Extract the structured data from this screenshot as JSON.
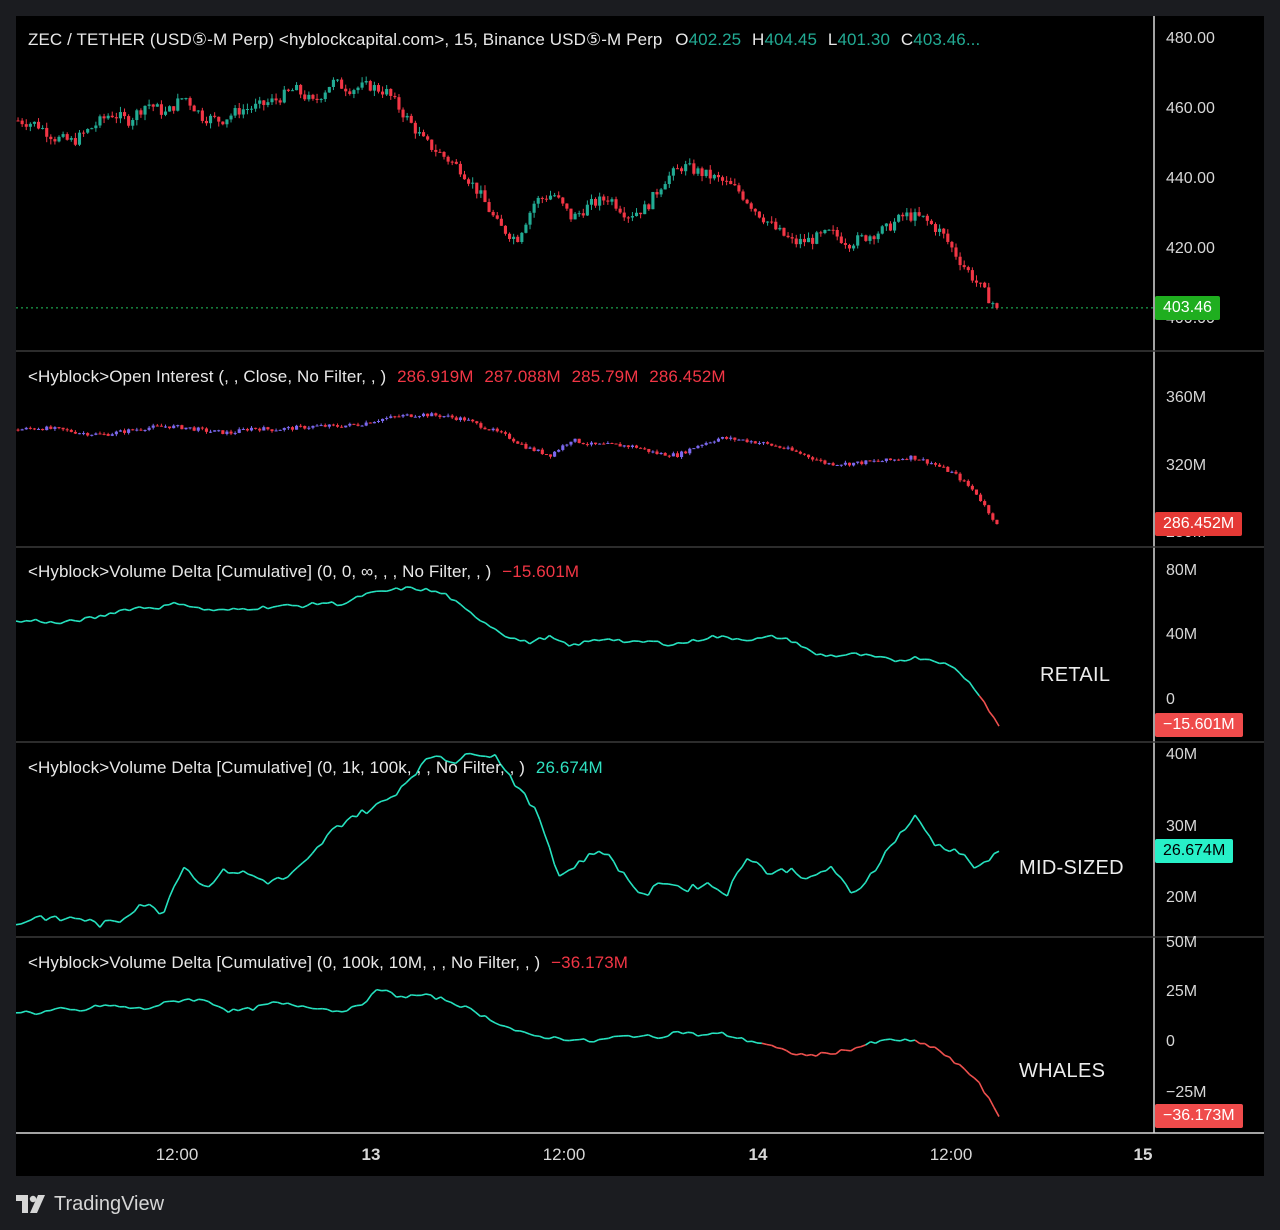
{
  "brand": {
    "name": "TradingView",
    "icon": "tradingview-logo-icon"
  },
  "colors": {
    "up": "#22ab94",
    "down": "#f23645",
    "line_up": "#26e3c0",
    "line_down": "#f0514f",
    "oi_up": "#7b68ee"
  },
  "panes": [
    {
      "id": "price",
      "title_main": "ZEC / TETHER (USD⑤-M Perp) <hyblockcapital.com>, 15, Binance USD⑤-M Perp",
      "ohlc": {
        "o_label": "O",
        "o": "402.25",
        "h_label": "H",
        "h": "404.45",
        "l_label": "L",
        "l": "401.30",
        "c_label": "C",
        "c": "403.46..."
      },
      "axis_ticks": [
        "480.00",
        "460.00",
        "440.00",
        "420.00",
        "400.00"
      ],
      "last_value": "403.46"
    },
    {
      "id": "open-interest",
      "title_main": "<Hyblock>Open Interest (, , Close, No Filter, , )",
      "values": [
        "286.919M",
        "287.088M",
        "285.79M",
        "286.452M"
      ],
      "axis_ticks": [
        "360M",
        "320M",
        "280M"
      ],
      "last_value": "286.452M"
    },
    {
      "id": "retail",
      "title_main": "<Hyblock>Volume Delta [Cumulative] (0, 0, ∞, , , No Filter, , )",
      "value": "−15.601M",
      "axis_ticks": [
        "80M",
        "40M",
        "0"
      ],
      "last_value": "−15.601M",
      "tag": "RETAIL"
    },
    {
      "id": "mid-sized",
      "title_main": "<Hyblock>Volume Delta [Cumulative] (0, 1k, 100k, , , No Filter, , )",
      "value": "26.674M",
      "axis_ticks": [
        "40M",
        "30M",
        "20M"
      ],
      "last_value": "26.674M",
      "tag": "MID-SIZED"
    },
    {
      "id": "whales",
      "title_main": "<Hyblock>Volume Delta [Cumulative] (0, 100k, 10M, , , No Filter, , )",
      "value": "−36.173M",
      "axis_ticks": [
        "50M",
        "25M",
        "0",
        "−25M"
      ],
      "last_value": "−36.173M",
      "tag": "WHALES"
    }
  ],
  "time_axis": [
    "12:00",
    "13",
    "12:00",
    "14",
    "12:00",
    "15"
  ],
  "chart_data": [
    {
      "type": "candlestick",
      "title": "ZEC / TETHER (USD⑤-M Perp), 15, Binance USD⑤-M Perp",
      "ylim": [
        395,
        485
      ],
      "keypoints_y": [
        457,
        456,
        452,
        451,
        455,
        459,
        457,
        462,
        459,
        464,
        458,
        457,
        460,
        461,
        463,
        466,
        462,
        468,
        466,
        467,
        465,
        458,
        451,
        447,
        443,
        436,
        427,
        423,
        434,
        436,
        429,
        433,
        435,
        430,
        432,
        440,
        444,
        442,
        440,
        437,
        431,
        426,
        422,
        423,
        425,
        422,
        424,
        426,
        430,
        429,
        425,
        417,
        410,
        403.46
      ],
      "last": 403.46
    },
    {
      "type": "candlestick",
      "title": "<Hyblock>Open Interest",
      "ylim": [
        278,
        372
      ],
      "keypoints_y": [
        342,
        343,
        342,
        340,
        339,
        341,
        343,
        344,
        343,
        341,
        340,
        343,
        342,
        343,
        344,
        344,
        345,
        348,
        350,
        351,
        350,
        348,
        343,
        338,
        331,
        327,
        336,
        333,
        333,
        332,
        328,
        327,
        333,
        337,
        336,
        334,
        331,
        327,
        322,
        322,
        323,
        324,
        326,
        322,
        316,
        305,
        286.452
      ],
      "last": 286.452
    },
    {
      "type": "line",
      "title": "RETAIL",
      "ylim": [
        -25,
        90
      ],
      "keypoints_y": [
        49,
        50,
        48,
        50,
        52,
        56,
        58,
        58,
        61,
        57,
        56,
        57,
        58,
        59,
        59,
        61,
        60,
        66,
        68,
        70,
        69,
        66,
        56,
        48,
        40,
        36,
        40,
        34,
        37,
        39,
        36,
        37,
        35,
        37,
        40,
        39,
        38,
        40,
        37,
        29,
        28,
        29,
        27,
        25,
        27,
        25,
        19,
        5,
        -15.601
      ],
      "last": -15.601
    },
    {
      "type": "line",
      "title": "MID-SIZED",
      "ylim": [
        15.5,
        44
      ],
      "keypoints_y": [
        16.3,
        17.6,
        17.1,
        17.4,
        16.4,
        17.0,
        19.5,
        18.0,
        24.8,
        21.6,
        24.0,
        23.6,
        22.4,
        23.0,
        25.5,
        29.2,
        31.5,
        32.6,
        34.4,
        37.5,
        40.3,
        39.2,
        40.6,
        39.9,
        35.6,
        31.6,
        23.1,
        25.3,
        27.0,
        23.7,
        20.3,
        22.6,
        21.3,
        22.2,
        20.8,
        26.2,
        23.5,
        24.2,
        22.7,
        24.6,
        20.3,
        24.0,
        28.2,
        31.5,
        27.5,
        26.8,
        24.1,
        26.674
      ],
      "last": 26.674
    },
    {
      "type": "line",
      "title": "WHALES",
      "ylim": [
        -40,
        50
      ],
      "keypoints_y": [
        16,
        15,
        17,
        16,
        19,
        18,
        17,
        20,
        22,
        21,
        16,
        17,
        20,
        19,
        18,
        16,
        18,
        27,
        23,
        24,
        22,
        18,
        13,
        8,
        4,
        3,
        2,
        1,
        3,
        4,
        3,
        6,
        4,
        5,
        2,
        0,
        -4,
        -6,
        -5,
        -3,
        0,
        2,
        1,
        -2,
        -10,
        -18,
        -36.173
      ],
      "last": -36.173
    }
  ]
}
